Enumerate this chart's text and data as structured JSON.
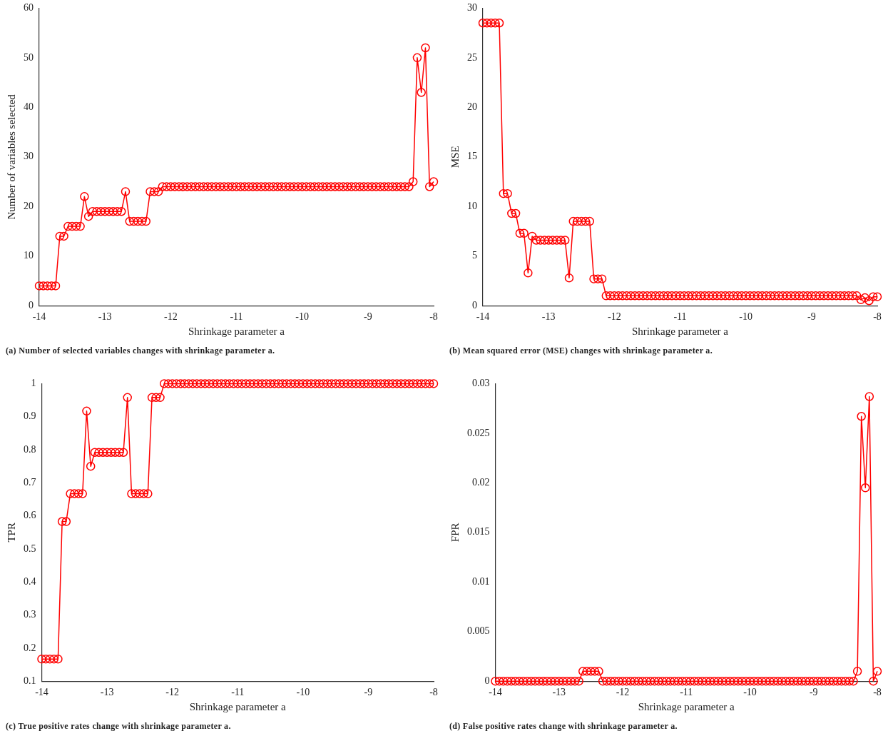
{
  "chart_data": [
    {
      "type": "line",
      "xlabel": "Shrinkage parameter a",
      "ylabel": "Number of variables selected",
      "annotations": [
        "(a) Number of selected variables changes with shrinkage parameter a."
      ],
      "xlim": [
        -14,
        -8
      ],
      "xticks": [
        -14,
        -13,
        -12,
        -11,
        -10,
        -9,
        -8
      ],
      "ylim": [
        0,
        60
      ],
      "yticks": [
        0,
        10,
        20,
        30,
        40,
        50,
        60
      ],
      "marker": "circle",
      "grid": false,
      "legend": false,
      "x": [
        -14,
        -13.9375,
        -13.875,
        -13.8125,
        -13.75,
        -13.6875,
        -13.625,
        -13.5625,
        -13.5,
        -13.4375,
        -13.375,
        -13.3125,
        -13.25,
        -13.1875,
        -13.125,
        -13.0625,
        -13,
        -12.9375,
        -12.875,
        -12.8125,
        -12.75,
        -12.6875,
        -12.625,
        -12.5625,
        -12.5,
        -12.4375,
        -12.375,
        -12.3125,
        -12.25,
        -12.1875,
        -12.125,
        -12.0625,
        -12,
        -11.9375,
        -11.875,
        -11.8125,
        -11.75,
        -11.6875,
        -11.625,
        -11.5625,
        -11.5,
        -11.4375,
        -11.375,
        -11.3125,
        -11.25,
        -11.1875,
        -11.125,
        -11.0625,
        -11,
        -10.9375,
        -10.875,
        -10.8125,
        -10.75,
        -10.6875,
        -10.625,
        -10.5625,
        -10.5,
        -10.4375,
        -10.375,
        -10.3125,
        -10.25,
        -10.1875,
        -10.125,
        -10.0625,
        -10,
        -9.9375,
        -9.875,
        -9.8125,
        -9.75,
        -9.6875,
        -9.625,
        -9.5625,
        -9.5,
        -9.4375,
        -9.375,
        -9.3125,
        -9.25,
        -9.1875,
        -9.125,
        -9.0625,
        -9,
        -8.9375,
        -8.875,
        -8.8125,
        -8.75,
        -8.6875,
        -8.625,
        -8.5625,
        -8.5,
        -8.4375,
        -8.375,
        -8.3125,
        -8.25,
        -8.1875,
        -8.125,
        -8.0625,
        -8
      ],
      "series": [
        {
          "color": "#ff0000",
          "values": [
            4,
            4,
            4,
            4,
            4,
            14,
            14,
            16,
            16,
            16,
            16,
            22,
            18,
            19,
            19,
            19,
            19,
            19,
            19,
            19,
            19,
            23,
            17,
            17,
            17,
            17,
            17,
            23,
            23,
            23,
            24,
            24,
            24,
            24,
            24,
            24,
            24,
            24,
            24,
            24,
            24,
            24,
            24,
            24,
            24,
            24,
            24,
            24,
            24,
            24,
            24,
            24,
            24,
            24,
            24,
            24,
            24,
            24,
            24,
            24,
            24,
            24,
            24,
            24,
            24,
            24,
            24,
            24,
            24,
            24,
            24,
            24,
            24,
            24,
            24,
            24,
            24,
            24,
            24,
            24,
            24,
            24,
            24,
            24,
            24,
            24,
            24,
            24,
            24,
            24,
            24,
            25,
            50,
            43,
            52,
            24,
            25
          ]
        }
      ]
    },
    {
      "type": "line",
      "xlabel": "Shrinkage parameter a",
      "ylabel": "MSE",
      "annotations": [
        "(b) Mean squared error (MSE) changes with shrinkage parameter a."
      ],
      "xlim": [
        -14,
        -8
      ],
      "xticks": [
        -14,
        -13,
        -12,
        -11,
        -10,
        -9,
        -8
      ],
      "ylim": [
        0,
        30
      ],
      "yticks": [
        0,
        5,
        10,
        15,
        20,
        25,
        30
      ],
      "marker": "circle",
      "grid": false,
      "legend": false,
      "x": [
        -14,
        -13.9375,
        -13.875,
        -13.8125,
        -13.75,
        -13.6875,
        -13.625,
        -13.5625,
        -13.5,
        -13.4375,
        -13.375,
        -13.3125,
        -13.25,
        -13.1875,
        -13.125,
        -13.0625,
        -13,
        -12.9375,
        -12.875,
        -12.8125,
        -12.75,
        -12.6875,
        -12.625,
        -12.5625,
        -12.5,
        -12.4375,
        -12.375,
        -12.3125,
        -12.25,
        -12.1875,
        -12.125,
        -12.0625,
        -12,
        -11.9375,
        -11.875,
        -11.8125,
        -11.75,
        -11.6875,
        -11.625,
        -11.5625,
        -11.5,
        -11.4375,
        -11.375,
        -11.3125,
        -11.25,
        -11.1875,
        -11.125,
        -11.0625,
        -11,
        -10.9375,
        -10.875,
        -10.8125,
        -10.75,
        -10.6875,
        -10.625,
        -10.5625,
        -10.5,
        -10.4375,
        -10.375,
        -10.3125,
        -10.25,
        -10.1875,
        -10.125,
        -10.0625,
        -10,
        -9.9375,
        -9.875,
        -9.8125,
        -9.75,
        -9.6875,
        -9.625,
        -9.5625,
        -9.5,
        -9.4375,
        -9.375,
        -9.3125,
        -9.25,
        -9.1875,
        -9.125,
        -9.0625,
        -9,
        -8.9375,
        -8.875,
        -8.8125,
        -8.75,
        -8.6875,
        -8.625,
        -8.5625,
        -8.5,
        -8.4375,
        -8.375,
        -8.3125,
        -8.25,
        -8.1875,
        -8.125,
        -8.0625,
        -8
      ],
      "series": [
        {
          "color": "#ff0000",
          "values": [
            28.5,
            28.5,
            28.5,
            28.5,
            28.5,
            11.3,
            11.3,
            9.3,
            9.3,
            7.3,
            7.3,
            3.3,
            7.0,
            6.6,
            6.6,
            6.6,
            6.6,
            6.6,
            6.6,
            6.6,
            6.6,
            2.8,
            8.5,
            8.5,
            8.5,
            8.5,
            8.5,
            2.7,
            2.7,
            2.7,
            1.0,
            1.0,
            1.0,
            1.0,
            1.0,
            1.0,
            1.0,
            1.0,
            1.0,
            1.0,
            1.0,
            1.0,
            1.0,
            1.0,
            1.0,
            1.0,
            1.0,
            1.0,
            1.0,
            1.0,
            1.0,
            1.0,
            1.0,
            1.0,
            1.0,
            1.0,
            1.0,
            1.0,
            1.0,
            1.0,
            1.0,
            1.0,
            1.0,
            1.0,
            1.0,
            1.0,
            1.0,
            1.0,
            1.0,
            1.0,
            1.0,
            1.0,
            1.0,
            1.0,
            1.0,
            1.0,
            1.0,
            1.0,
            1.0,
            1.0,
            1.0,
            1.0,
            1.0,
            1.0,
            1.0,
            1.0,
            1.0,
            1.0,
            1.0,
            1.0,
            1.0,
            1.0,
            0.6,
            0.8,
            0.5,
            0.9,
            0.9
          ]
        }
      ]
    },
    {
      "type": "line",
      "xlabel": "Shrinkage parameter a",
      "ylabel": "TPR",
      "annotations": [
        "(c) True positive rates change with shrinkage parameter a."
      ],
      "xlim": [
        -14,
        -8
      ],
      "xticks": [
        -14,
        -13,
        -12,
        -11,
        -10,
        -9,
        -8
      ],
      "ylim": [
        0.1,
        1
      ],
      "yticks": [
        0.1,
        0.2,
        0.3,
        0.4,
        0.5,
        0.6,
        0.7,
        0.8,
        0.9,
        1
      ],
      "marker": "circle",
      "grid": false,
      "legend": false,
      "x": [
        -14,
        -13.9375,
        -13.875,
        -13.8125,
        -13.75,
        -13.6875,
        -13.625,
        -13.5625,
        -13.5,
        -13.4375,
        -13.375,
        -13.3125,
        -13.25,
        -13.1875,
        -13.125,
        -13.0625,
        -13,
        -12.9375,
        -12.875,
        -12.8125,
        -12.75,
        -12.6875,
        -12.625,
        -12.5625,
        -12.5,
        -12.4375,
        -12.375,
        -12.3125,
        -12.25,
        -12.1875,
        -12.125,
        -12.0625,
        -12,
        -11.9375,
        -11.875,
        -11.8125,
        -11.75,
        -11.6875,
        -11.625,
        -11.5625,
        -11.5,
        -11.4375,
        -11.375,
        -11.3125,
        -11.25,
        -11.1875,
        -11.125,
        -11.0625,
        -11,
        -10.9375,
        -10.875,
        -10.8125,
        -10.75,
        -10.6875,
        -10.625,
        -10.5625,
        -10.5,
        -10.4375,
        -10.375,
        -10.3125,
        -10.25,
        -10.1875,
        -10.125,
        -10.0625,
        -10,
        -9.9375,
        -9.875,
        -9.8125,
        -9.75,
        -9.6875,
        -9.625,
        -9.5625,
        -9.5,
        -9.4375,
        -9.375,
        -9.3125,
        -9.25,
        -9.1875,
        -9.125,
        -9.0625,
        -9,
        -8.9375,
        -8.875,
        -8.8125,
        -8.75,
        -8.6875,
        -8.625,
        -8.5625,
        -8.5,
        -8.4375,
        -8.375,
        -8.3125,
        -8.25,
        -8.1875,
        -8.125,
        -8.0625,
        -8
      ],
      "series": [
        {
          "color": "#ff0000",
          "values": [
            0.167,
            0.167,
            0.167,
            0.167,
            0.167,
            0.583,
            0.583,
            0.667,
            0.667,
            0.667,
            0.667,
            0.917,
            0.75,
            0.792,
            0.792,
            0.792,
            0.792,
            0.792,
            0.792,
            0.792,
            0.792,
            0.958,
            0.667,
            0.667,
            0.667,
            0.667,
            0.667,
            0.958,
            0.958,
            0.958,
            1,
            1,
            1,
            1,
            1,
            1,
            1,
            1,
            1,
            1,
            1,
            1,
            1,
            1,
            1,
            1,
            1,
            1,
            1,
            1,
            1,
            1,
            1,
            1,
            1,
            1,
            1,
            1,
            1,
            1,
            1,
            1,
            1,
            1,
            1,
            1,
            1,
            1,
            1,
            1,
            1,
            1,
            1,
            1,
            1,
            1,
            1,
            1,
            1,
            1,
            1,
            1,
            1,
            1,
            1,
            1,
            1,
            1,
            1,
            1,
            1,
            1,
            1,
            1,
            1,
            1,
            1
          ]
        }
      ]
    },
    {
      "type": "line",
      "xlabel": "Shrinkage parameter a",
      "ylabel": "FPR",
      "annotations": [
        "(d) False positive rates change with shrinkage parameter a."
      ],
      "xlim": [
        -14,
        -8
      ],
      "xticks": [
        -14,
        -13,
        -12,
        -11,
        -10,
        -9,
        -8
      ],
      "ylim": [
        0,
        0.03
      ],
      "yticks": [
        0,
        0.005,
        0.01,
        0.015,
        0.02,
        0.025,
        0.03
      ],
      "marker": "circle",
      "grid": false,
      "legend": false,
      "x": [
        -14,
        -13.9375,
        -13.875,
        -13.8125,
        -13.75,
        -13.6875,
        -13.625,
        -13.5625,
        -13.5,
        -13.4375,
        -13.375,
        -13.3125,
        -13.25,
        -13.1875,
        -13.125,
        -13.0625,
        -13,
        -12.9375,
        -12.875,
        -12.8125,
        -12.75,
        -12.6875,
        -12.625,
        -12.5625,
        -12.5,
        -12.4375,
        -12.375,
        -12.3125,
        -12.25,
        -12.1875,
        -12.125,
        -12.0625,
        -12,
        -11.9375,
        -11.875,
        -11.8125,
        -11.75,
        -11.6875,
        -11.625,
        -11.5625,
        -11.5,
        -11.4375,
        -11.375,
        -11.3125,
        -11.25,
        -11.1875,
        -11.125,
        -11.0625,
        -11,
        -10.9375,
        -10.875,
        -10.8125,
        -10.75,
        -10.6875,
        -10.625,
        -10.5625,
        -10.5,
        -10.4375,
        -10.375,
        -10.3125,
        -10.25,
        -10.1875,
        -10.125,
        -10.0625,
        -10,
        -9.9375,
        -9.875,
        -9.8125,
        -9.75,
        -9.6875,
        -9.625,
        -9.5625,
        -9.5,
        -9.4375,
        -9.375,
        -9.3125,
        -9.25,
        -9.1875,
        -9.125,
        -9.0625,
        -9,
        -8.9375,
        -8.875,
        -8.8125,
        -8.75,
        -8.6875,
        -8.625,
        -8.5625,
        -8.5,
        -8.4375,
        -8.375,
        -8.3125,
        -8.25,
        -8.1875,
        -8.125,
        -8.0625,
        -8
      ],
      "series": [
        {
          "color": "#ff0000",
          "values": [
            0,
            0,
            0,
            0,
            0,
            0,
            0,
            0,
            0,
            0,
            0,
            0,
            0,
            0,
            0,
            0,
            0,
            0,
            0,
            0,
            0,
            0,
            0.001,
            0.001,
            0.001,
            0.001,
            0.001,
            0,
            0,
            0,
            0,
            0,
            0,
            0,
            0,
            0,
            0,
            0,
            0,
            0,
            0,
            0,
            0,
            0,
            0,
            0,
            0,
            0,
            0,
            0,
            0,
            0,
            0,
            0,
            0,
            0,
            0,
            0,
            0,
            0,
            0,
            0,
            0,
            0,
            0,
            0,
            0,
            0,
            0,
            0,
            0,
            0,
            0,
            0,
            0,
            0,
            0,
            0,
            0,
            0,
            0,
            0,
            0,
            0,
            0,
            0,
            0,
            0,
            0,
            0,
            0,
            0.001,
            0.0267,
            0.0195,
            0.0287,
            0,
            0.001
          ]
        }
      ]
    }
  ]
}
